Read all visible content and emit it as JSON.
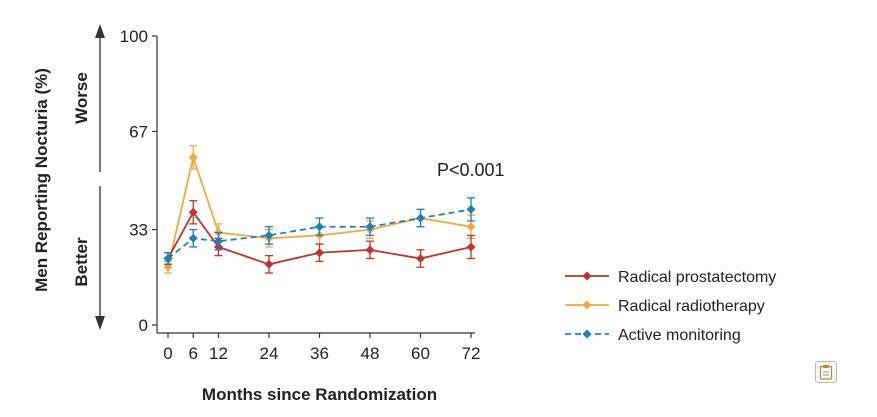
{
  "chart_data": {
    "type": "line",
    "title": "",
    "xlabel": "Months since Randomization",
    "ylabel": "Men Reporting Nocturia (%)",
    "x": [
      0,
      6,
      12,
      24,
      36,
      48,
      60,
      72
    ],
    "xticks": [
      "0",
      "6",
      "12",
      "24",
      "36",
      "48",
      "60",
      "72"
    ],
    "yticks": [
      "0",
      "33",
      "67",
      "100"
    ],
    "ytick_values": [
      0,
      33,
      67,
      100
    ],
    "xlim": [
      0,
      72
    ],
    "ylim": [
      0,
      100
    ],
    "grid": false,
    "legend_position": "right",
    "direction_labels": {
      "up": "Worse",
      "down": "Better"
    },
    "annotation": "P<0.001",
    "series": [
      {
        "name": "Radical prostatectomy",
        "color": "#c0332f",
        "dashed": false,
        "values": [
          23,
          39,
          27,
          21,
          25,
          26,
          23,
          27
        ],
        "err": [
          2,
          4,
          3,
          3,
          3,
          3,
          3,
          4
        ]
      },
      {
        "name": "Radical radiotherapy",
        "color": "#f2a93b",
        "dashed": false,
        "values": [
          20,
          58,
          32,
          30,
          31,
          33,
          37,
          34
        ],
        "err": [
          2,
          4,
          3,
          3,
          3,
          3,
          3,
          4
        ]
      },
      {
        "name": "Active monitoring",
        "color": "#1e7fb8",
        "dashed": true,
        "values": [
          23,
          30,
          29,
          31,
          34,
          34,
          37,
          40
        ],
        "err": [
          2,
          3,
          3,
          3,
          3,
          3,
          3,
          4
        ]
      }
    ]
  }
}
